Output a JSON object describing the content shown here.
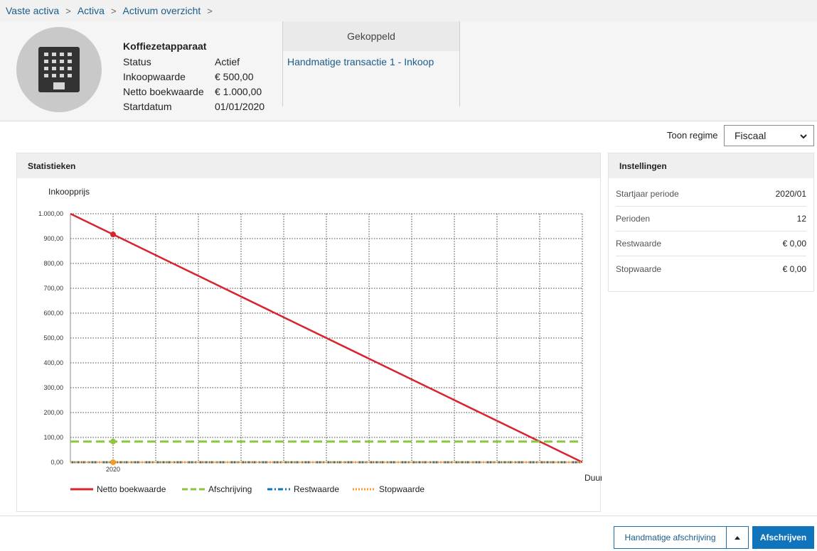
{
  "breadcrumb": {
    "items": [
      "Vaste activa",
      "Activa",
      "Activum overzicht"
    ],
    "separator": ">"
  },
  "asset": {
    "icon": "building-icon",
    "name": "Koffiezetapparaat",
    "properties": [
      {
        "label": "Status",
        "value": "Actief"
      },
      {
        "label": "Inkoopwaarde",
        "value": "€ 500,00"
      },
      {
        "label": "Netto boekwaarde",
        "value": "€ 1.000,00"
      },
      {
        "label": "Startdatum",
        "value": "01/01/2020"
      }
    ]
  },
  "linked": {
    "header": "Gekoppeld",
    "items": [
      "Handmatige transactie 1 - Inkoop"
    ]
  },
  "regime": {
    "label": "Toon regime",
    "selected": "Fiscaal"
  },
  "statistics": {
    "title": "Statistieken"
  },
  "settings": {
    "title": "Instellingen",
    "rows": [
      {
        "label": "Startjaar periode",
        "value": "2020/01"
      },
      {
        "label": "Perioden",
        "value": "12"
      },
      {
        "label": "Restwaarde",
        "value": "€ 0,00"
      },
      {
        "label": "Stopwaarde",
        "value": "€ 0,00"
      }
    ]
  },
  "actions": {
    "manual_label": "Handmatige afschrijving",
    "primary_label": "Afschrijven"
  },
  "colors": {
    "link": "#1a5c8a",
    "primary": "#0f74bb",
    "netto": "#d9232e",
    "afschrijving": "#8cc63f",
    "restwaarde": "#0f74bb",
    "stopwaarde": "#f39c1f"
  },
  "chart_data": {
    "type": "line",
    "ylabel": "Inkoopprijs",
    "xlabel": "Duur",
    "ylim": [
      0,
      1000
    ],
    "yticks": [
      "0,00",
      "100,00",
      "200,00",
      "300,00",
      "400,00",
      "500,00",
      "600,00",
      "700,00",
      "800,00",
      "900,00",
      "1.000,00"
    ],
    "xlim": [
      0,
      12
    ],
    "xtick_labels": [
      {
        "x": 1,
        "label": "2020"
      }
    ],
    "grid": true,
    "legend_position": "bottom",
    "series": [
      {
        "name": "Netto boekwaarde",
        "style": "solid",
        "color": "#d9232e",
        "points": [
          [
            0,
            1000
          ],
          [
            1,
            916.67
          ],
          [
            12,
            0
          ]
        ],
        "markers": [
          [
            1,
            916.67
          ]
        ]
      },
      {
        "name": "Afschrijving",
        "style": "dashed",
        "color": "#8cc63f",
        "points": [
          [
            0,
            83.33
          ],
          [
            12,
            83.33
          ]
        ],
        "markers": [
          [
            1,
            83.33
          ]
        ]
      },
      {
        "name": "Restwaarde",
        "style": "dashdot",
        "color": "#0f74bb",
        "points": [
          [
            0,
            0
          ],
          [
            12,
            0
          ]
        ],
        "markers": []
      },
      {
        "name": "Stopwaarde",
        "style": "dotted",
        "color": "#f39c1f",
        "points": [
          [
            0,
            0
          ],
          [
            12,
            0
          ]
        ],
        "markers": [
          [
            1,
            0
          ]
        ]
      }
    ]
  }
}
